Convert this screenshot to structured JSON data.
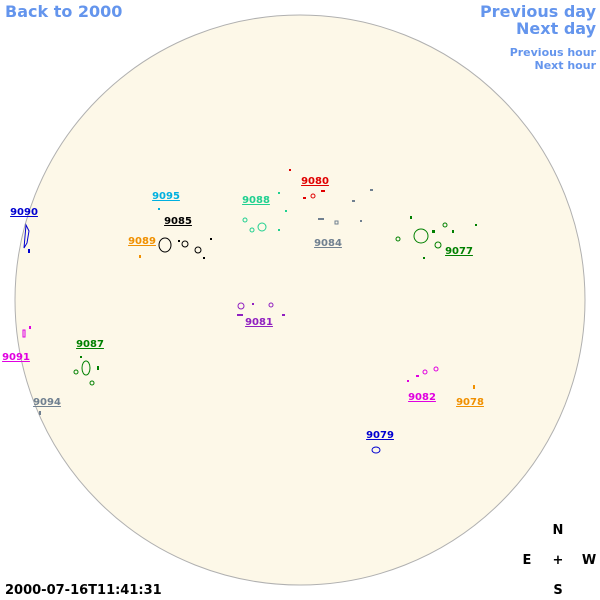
{
  "navigation": {
    "back": "Back to 2000",
    "previous_day": "Previous day",
    "next_day": "Next day",
    "previous_hour": "Previous hour",
    "next_hour": "Next hour"
  },
  "timestamp": "2000-07-16T11:41:31",
  "compass": {
    "north": "N",
    "east": "E",
    "center": "+",
    "west": "W",
    "south": "S"
  },
  "regions": [
    {
      "label": "9080",
      "color": "#e00000"
    },
    {
      "label": "9095",
      "color": "#00b0e0"
    },
    {
      "label": "9090",
      "color": "#0000d0"
    },
    {
      "label": "9088",
      "color": "#20d090"
    },
    {
      "label": "9085",
      "color": "#000000"
    },
    {
      "label": "9089",
      "color": "#f09000"
    },
    {
      "label": "9084",
      "color": "#708090"
    },
    {
      "label": "9077",
      "color": "#008000"
    },
    {
      "label": "9081",
      "color": "#9020c0"
    },
    {
      "label": "9091",
      "color": "#e000e0"
    },
    {
      "label": "9087",
      "color": "#008000"
    },
    {
      "label": "9094",
      "color": "#708090"
    },
    {
      "label": "9082",
      "color": "#e000e0"
    },
    {
      "label": "9078",
      "color": "#f09000"
    },
    {
      "label": "9079",
      "color": "#0000d0"
    }
  ]
}
